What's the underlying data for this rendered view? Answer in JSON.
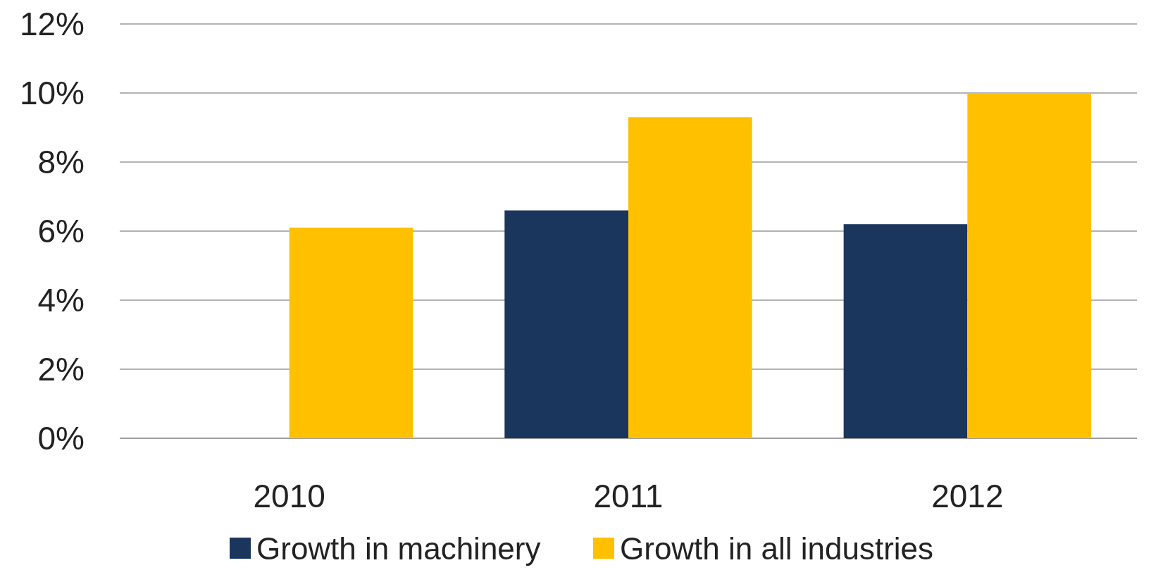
{
  "chart_data": {
    "type": "bar",
    "categories": [
      "2010",
      "2011",
      "2012"
    ],
    "series": [
      {
        "name": "Growth in machinery",
        "color": "#1b365d",
        "values": [
          null,
          6.6,
          6.2
        ]
      },
      {
        "name": "Growth in all industries",
        "color": "#ffc000",
        "values": [
          6.1,
          9.3,
          10.0
        ]
      }
    ],
    "ylim": [
      0,
      12
    ],
    "yticks": [
      {
        "value": 0,
        "label": "0%"
      },
      {
        "value": 2,
        "label": "2%"
      },
      {
        "value": 4,
        "label": "4%"
      },
      {
        "value": 6,
        "label": "6%"
      },
      {
        "value": 8,
        "label": "8%"
      },
      {
        "value": 10,
        "label": "10%"
      },
      {
        "value": 12,
        "label": "12%"
      }
    ],
    "grid": "y",
    "legend": "bottom"
  }
}
